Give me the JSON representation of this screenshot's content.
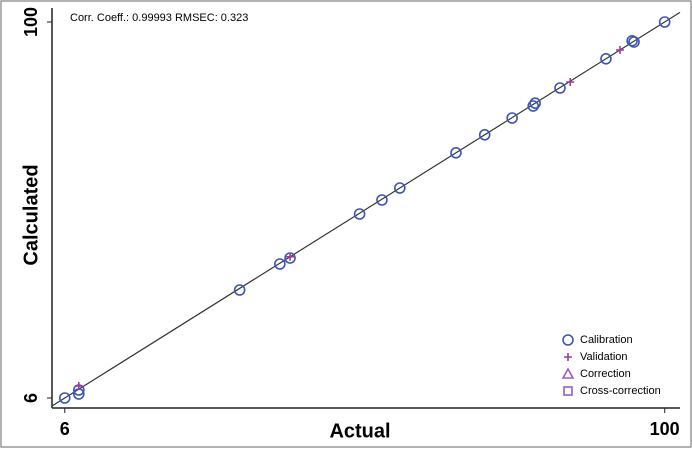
{
  "chart_data": {
    "type": "scatter",
    "annotation": "Corr. Coeff.: 0.99993  RMSEC: 0.323",
    "xlabel": "Actual",
    "ylabel": "Calculated",
    "xlim": [
      4,
      102.4
    ],
    "ylim": [
      3.5,
      103.5
    ],
    "xticks": [
      6,
      100
    ],
    "yticks": [
      6,
      100
    ],
    "legend": "lower right",
    "series": [
      {
        "name": "Calibration",
        "marker": "circle",
        "color": "#3a56b0",
        "x": [
          6.0,
          8.2,
          8.2,
          33.4,
          39.7,
          41.3,
          52.2,
          55.7,
          58.5,
          67.3,
          71.8,
          76.1,
          79.4,
          79.7,
          83.6,
          90.8,
          94.9,
          95.2,
          100
        ],
        "y": [
          6.0,
          7.0,
          8.0,
          33.0,
          39.5,
          41.0,
          52.0,
          55.5,
          58.5,
          67.3,
          71.8,
          76.0,
          79.0,
          79.7,
          83.5,
          90.8,
          95.3,
          95.0,
          100
        ]
      },
      {
        "name": "Validation",
        "marker": "plus",
        "color": "#9a3c9a",
        "x": [
          8.2,
          41.3,
          85.2,
          93.0
        ],
        "y": [
          9.0,
          41.3,
          85.0,
          93.0
        ]
      },
      {
        "name": "Correction",
        "marker": "triangle",
        "color": "#9a5cc0",
        "x": [],
        "y": []
      },
      {
        "name": "Cross-correction",
        "marker": "square",
        "color": "#9a5cc0",
        "x": [],
        "y": []
      }
    ]
  }
}
